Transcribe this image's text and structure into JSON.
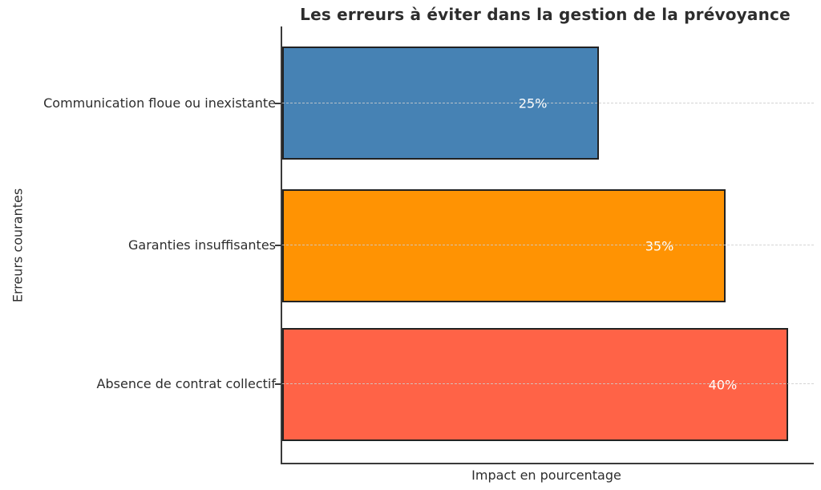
{
  "chart_data": {
    "type": "bar",
    "orientation": "horizontal",
    "title": "Les erreurs à éviter dans la gestion de la prévoyance",
    "xlabel": "Impact en pourcentage",
    "ylabel": "Erreurs courantes",
    "categories": [
      "Communication floue ou inexistante",
      "Garanties insuffisantes",
      "Absence de contrat collectif"
    ],
    "values": [
      25,
      35,
      40
    ],
    "value_labels": [
      "25%",
      "35%",
      "40%"
    ],
    "colors": [
      "#4682B4",
      "#FF9303",
      "#FF6347"
    ],
    "bar_edge_color": "#222222",
    "value_label_color": "#ffffff",
    "xlim": [
      0,
      42
    ],
    "grid": "horizontal dashed gridlines at category centers",
    "gridline_color": "#cdcdcd",
    "legend": "none",
    "background_color": "#ffffff",
    "title_color": "#2d2d2d",
    "axis_text_color": "#2d2d2d"
  }
}
